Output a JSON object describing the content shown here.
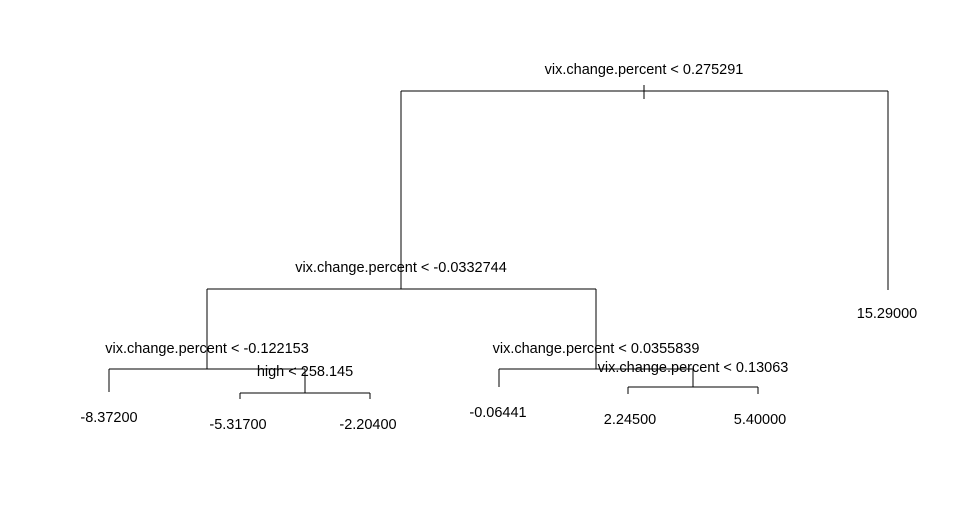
{
  "tree": {
    "splits": {
      "root": "vix.change.percent < 0.275291",
      "left": "vix.change.percent < -0.0332744",
      "left_left": "vix.change.percent < -0.122153",
      "left_left_right": "high < 258.145",
      "left_right": "vix.change.percent < 0.0355839",
      "left_right_right": "vix.change.percent < 0.13063"
    },
    "leaves": {
      "l1": "-8.37200",
      "l2": "-5.31700",
      "l3": "-2.20400",
      "l4": "-0.06441",
      "l5": "2.24500",
      "l6": "5.40000",
      "r": "15.29000"
    }
  }
}
